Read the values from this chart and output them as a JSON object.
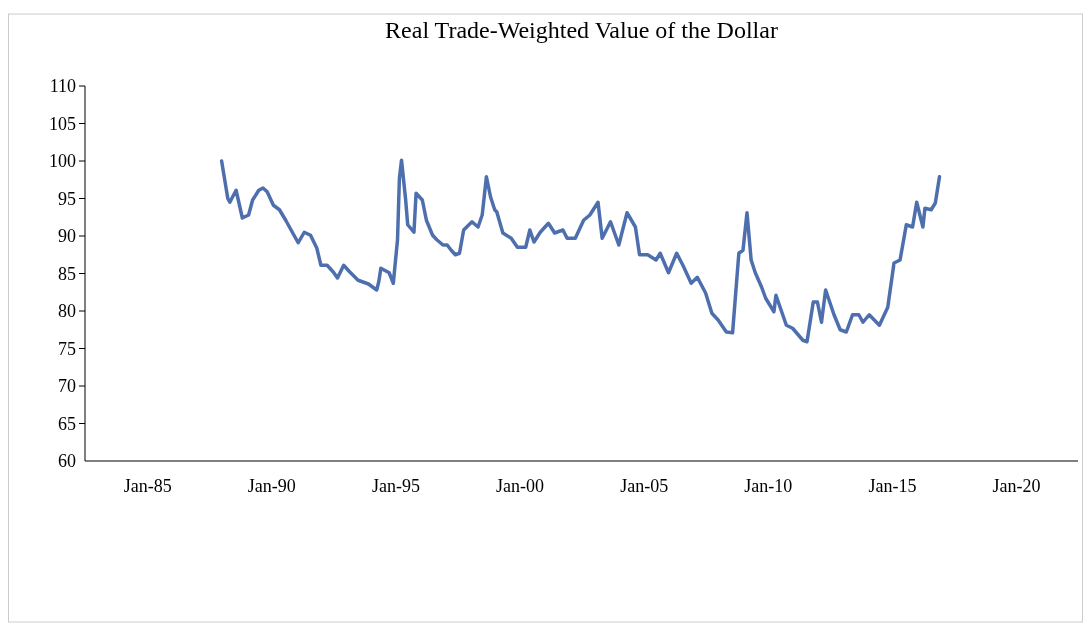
{
  "chart_data": {
    "type": "line",
    "title": "Real Trade-Weighted Value of the Dollar",
    "x": [
      "1988-01",
      "1988-04",
      "1988-05",
      "1988-08",
      "1988-11",
      "1989-02",
      "1989-04",
      "1989-07",
      "1989-09",
      "1989-11",
      "1990-02",
      "1990-05",
      "1990-08",
      "1990-12",
      "1991-02",
      "1991-05",
      "1991-08",
      "1991-11",
      "1992-01",
      "1992-04",
      "1992-07",
      "1992-09",
      "1992-12",
      "1993-03",
      "1993-07",
      "1993-12",
      "1994-04",
      "1994-05",
      "1994-06",
      "1994-10",
      "1994-12",
      "1995-02",
      "1995-03",
      "1995-04",
      "1995-06",
      "1995-07",
      "1995-10",
      "1995-11",
      "1996-02",
      "1996-04",
      "1996-07",
      "1996-09",
      "1996-12",
      "1997-02",
      "1997-04",
      "1997-06",
      "1997-08",
      "1997-10",
      "1998-02",
      "1998-05",
      "1998-07",
      "1998-09",
      "1998-11",
      "1999-01",
      "1999-02",
      "1999-05",
      "1999-09",
      "1999-12",
      "2000-04",
      "2000-06",
      "2000-08",
      "2000-11",
      "2001-03",
      "2001-06",
      "2001-10",
      "2001-12",
      "2002-04",
      "2002-08",
      "2002-11",
      "2003-03",
      "2003-05",
      "2003-09",
      "2004-01",
      "2004-05",
      "2004-09",
      "2004-11",
      "2005-03",
      "2005-07",
      "2005-09",
      "2006-01",
      "2006-05",
      "2006-08",
      "2006-12",
      "2007-03",
      "2007-07",
      "2007-10",
      "2008-01",
      "2008-05",
      "2008-08",
      "2008-11",
      "2009-01",
      "2009-03",
      "2009-05",
      "2009-07",
      "2009-10",
      "2009-12",
      "2010-04",
      "2010-05",
      "2010-10",
      "2011-01",
      "2011-06",
      "2011-08",
      "2011-11",
      "2012-01",
      "2012-03",
      "2012-05",
      "2012-09",
      "2012-12",
      "2013-03",
      "2013-06",
      "2013-09",
      "2013-11",
      "2014-02",
      "2014-07",
      "2014-11",
      "2015-02",
      "2015-05",
      "2015-08",
      "2015-11",
      "2016-01",
      "2016-04",
      "2016-05",
      "2016-08",
      "2016-10",
      "2016-12"
    ],
    "series": [
      {
        "color": "#4e6fae",
        "values": [
          100.0,
          95.0,
          94.5,
          96.1,
          92.4,
          92.8,
          94.8,
          96.1,
          96.4,
          95.9,
          94.1,
          93.5,
          92.1,
          90.1,
          89.1,
          90.5,
          90.1,
          88.4,
          86.1,
          86.1,
          85.2,
          84.4,
          86.1,
          85.2,
          84.1,
          83.6,
          82.8,
          83.9,
          85.7,
          85.1,
          83.7,
          89.5,
          97.7,
          100.1,
          94.8,
          91.5,
          90.5,
          95.7,
          94.8,
          92.1,
          90.1,
          89.5,
          88.8,
          88.8,
          88.1,
          87.5,
          87.7,
          90.8,
          91.9,
          91.2,
          92.8,
          97.9,
          95.2,
          93.5,
          93.2,
          90.4,
          89.7,
          88.5,
          88.5,
          90.8,
          89.2,
          90.5,
          91.7,
          90.4,
          90.8,
          89.7,
          89.7,
          92.1,
          92.8,
          94.5,
          89.7,
          91.9,
          88.8,
          93.1,
          91.2,
          87.5,
          87.5,
          86.8,
          87.7,
          85.1,
          87.7,
          86.1,
          83.7,
          84.5,
          82.4,
          79.7,
          78.8,
          77.2,
          77.1,
          87.7,
          88.1,
          93.1,
          86.8,
          85.1,
          83.2,
          81.7,
          79.9,
          82.1,
          78.1,
          77.7,
          76.1,
          75.9,
          81.2,
          81.2,
          78.5,
          82.8,
          79.5,
          77.5,
          77.2,
          79.5,
          79.5,
          78.5,
          79.5,
          78.1,
          80.5,
          86.4,
          86.8,
          91.5,
          91.2,
          94.5,
          91.2,
          93.7,
          93.5,
          94.4,
          97.9
        ]
      }
    ],
    "xlim": [
      "1982-07",
      "2022-07"
    ],
    "xticks": [
      {
        "value": "1985-01",
        "label": "Jan-85"
      },
      {
        "value": "1990-01",
        "label": "Jan-90"
      },
      {
        "value": "1995-01",
        "label": "Jan-95"
      },
      {
        "value": "2000-01",
        "label": "Jan-00"
      },
      {
        "value": "2005-01",
        "label": "Jan-05"
      },
      {
        "value": "2010-01",
        "label": "Jan-10"
      },
      {
        "value": "2015-01",
        "label": "Jan-15"
      },
      {
        "value": "2020-01",
        "label": "Jan-20"
      }
    ],
    "ylim": [
      60,
      110
    ],
    "yticks": [
      60,
      65,
      70,
      75,
      80,
      85,
      90,
      95,
      100,
      105,
      110
    ],
    "grid": false,
    "marker": "none",
    "line_style": "solid"
  }
}
